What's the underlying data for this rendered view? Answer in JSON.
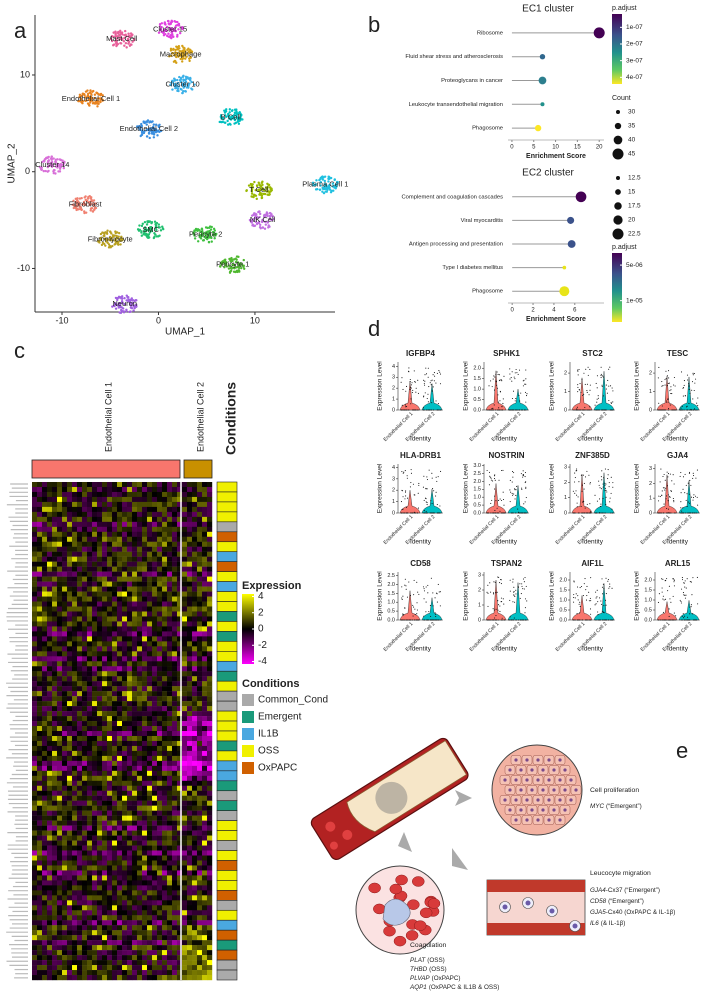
{
  "panel_labels": [
    "a",
    "b",
    "c",
    "d",
    "e"
  ],
  "chart_data": [
    {
      "type": "scatter",
      "xlabel": "UMAP_1",
      "ylabel": "UMAP_2",
      "xlim": [
        -12.8,
        18.3
      ],
      "ylim": [
        -14.5,
        16.2
      ],
      "xticks": [
        -10,
        0,
        10
      ],
      "yticks": [
        -10,
        0,
        10
      ],
      "series": [
        {
          "name": "Mast Cell",
          "color": "#e8609a",
          "x": [
            -3.8
          ],
          "y": [
            13.7
          ]
        },
        {
          "name": "Cluster 15",
          "color": "#e040e0",
          "x": [
            1.2
          ],
          "y": [
            14.7
          ]
        },
        {
          "name": "Macrophage",
          "color": "#d4a017",
          "x": [
            2.3
          ],
          "y": [
            12.1
          ]
        },
        {
          "name": "Cluster 10",
          "color": "#3ab0e8",
          "x": [
            2.5
          ],
          "y": [
            9.0
          ]
        },
        {
          "name": "Endothelial Cell 1",
          "color": "#e8821e",
          "x": [
            -7.0
          ],
          "y": [
            7.5
          ]
        },
        {
          "name": "Endothelial Cell 2",
          "color": "#3a8fe0",
          "x": [
            -1.0
          ],
          "y": [
            4.4
          ]
        },
        {
          "name": "B Cell",
          "color": "#00c0c0",
          "x": [
            7.5
          ],
          "y": [
            5.6
          ]
        },
        {
          "name": "Cluster 14",
          "color": "#d870d8",
          "x": [
            -11.0
          ],
          "y": [
            0.7
          ]
        },
        {
          "name": "Fibroblast",
          "color": "#f08070",
          "x": [
            -7.6
          ],
          "y": [
            -3.4
          ]
        },
        {
          "name": "T Cell",
          "color": "#9ab800",
          "x": [
            10.4
          ],
          "y": [
            -1.9
          ]
        },
        {
          "name": "Plasma Cell 1",
          "color": "#20c0e0",
          "x": [
            17.3
          ],
          "y": [
            -1.3
          ]
        },
        {
          "name": "NK Cell",
          "color": "#c070e0",
          "x": [
            10.8
          ],
          "y": [
            -5.0
          ]
        },
        {
          "name": "Fibromyocyte",
          "color": "#b8a020",
          "x": [
            -5.0
          ],
          "y": [
            -7.0
          ]
        },
        {
          "name": "SMC",
          "color": "#20c070",
          "x": [
            -0.8
          ],
          "y": [
            -6.0
          ]
        },
        {
          "name": "Pericyte 2",
          "color": "#40c040",
          "x": [
            4.9
          ],
          "y": [
            -6.5
          ]
        },
        {
          "name": "Pericyte 1",
          "color": "#50b830",
          "x": [
            7.7
          ],
          "y": [
            -9.6
          ]
        },
        {
          "name": "Neuron",
          "color": "#a060e0",
          "x": [
            -3.5
          ],
          "y": [
            -13.7
          ]
        }
      ]
    },
    {
      "type": "lollipop",
      "title": "EC1 cluster",
      "xlabel": "Enrichment Score",
      "categories": [
        "Ribosome",
        "Fluid shear stress and atherosclerosis",
        "Proteoglycans in cancer",
        "Leukocyte transendothelial migration",
        "Phagosome"
      ],
      "values": [
        20,
        7,
        7,
        7,
        6
      ],
      "counts": [
        45,
        33,
        38,
        30,
        35
      ],
      "colors": [
        "#440154",
        "#31688e",
        "#2c7f8e",
        "#21918c",
        "#fde725"
      ],
      "xlim": [
        -0.9,
        21.1
      ],
      "xticks": [
        0,
        5,
        10,
        15,
        20
      ],
      "size_title": "Count",
      "size_ticks": [
        30,
        35,
        40,
        45
      ],
      "color_title": "p.adjust",
      "clim": [
        2e-08,
        4.4e-07
      ],
      "cticks": [
        {
          "value": 1e-07,
          "label": "1e-07"
        },
        {
          "value": 2e-07,
          "label": "2e-07"
        },
        {
          "value": 3e-07,
          "label": "3e-07"
        },
        {
          "value": 4e-07,
          "label": "4e-07"
        }
      ]
    },
    {
      "type": "lollipop",
      "title": "EC2 cluster",
      "xlabel": "Enrichment Score",
      "categories": [
        "Complement and coagulation cascades",
        "Viral myocarditis",
        "Antigen processing and presentation",
        "Type I diabetes mellitus",
        "Phagosome"
      ],
      "values": [
        6.6,
        5.6,
        5.7,
        5.0,
        5.0
      ],
      "counts": [
        22,
        17,
        18,
        12,
        21
      ],
      "colors": [
        "#440154",
        "#3b528b",
        "#3b528b",
        "#e8e419",
        "#e8e419"
      ],
      "xlim": [
        -0.4,
        8.8
      ],
      "xticks": [
        0,
        2,
        4,
        6
      ],
      "size_ticks": [
        12.5,
        15.0,
        17.5,
        20.0,
        22.5
      ],
      "color_title": "p.adjust",
      "clim": [
        3.3e-06,
        1.3e-05
      ],
      "cticks": [
        {
          "value": 5e-06,
          "label": "5e-06"
        },
        {
          "value": 1e-05,
          "label": "1e-05"
        }
      ]
    }
  ],
  "heatmap": {
    "columns": [
      {
        "name": "Endothelial Cell 1",
        "color": "#f8766d"
      },
      {
        "name": "Endothelial Cell 2",
        "color": "#c89000"
      }
    ],
    "annotation_title": "Conditions",
    "expression_title": "Expression",
    "clim": [
      -4.3,
      4.3
    ],
    "cticks": [
      4,
      2,
      0,
      -2,
      -4
    ],
    "conditions_title": "Conditions",
    "conditions": [
      {
        "name": "Common_Cond",
        "color": "#aaaaaa"
      },
      {
        "name": "Emergent",
        "color": "#1a9a7a"
      },
      {
        "name": "IL1B",
        "color": "#4aa8e0"
      },
      {
        "name": "OSS",
        "color": "#f0f000"
      },
      {
        "name": "OxPAPC",
        "color": "#d06000"
      }
    ]
  },
  "violins": {
    "ylabel": "Expression Level",
    "xlabel": "Identity",
    "groups": [
      "Endothelial Cell 1",
      "Endothelial Cell 2"
    ],
    "colors": [
      "#f8766d",
      "#00bfc4"
    ],
    "genes": [
      {
        "name": "IGFBP4",
        "ylim": [
          0,
          4.4
        ],
        "yticks": [
          0,
          1,
          2,
          3,
          4
        ]
      },
      {
        "name": "SPHK1",
        "ylim": [
          0,
          2.3
        ],
        "yticks": [
          {
            "value": 0,
            "label": "0.0"
          },
          {
            "value": 0.5,
            "label": "0.5"
          },
          {
            "value": 1,
            "label": "1.0"
          },
          {
            "value": 1.5,
            "label": "1.5"
          },
          {
            "value": 2,
            "label": "2.0"
          }
        ]
      },
      {
        "name": "STC2",
        "ylim": [
          0,
          2.6
        ],
        "yticks": [
          0,
          1,
          2
        ]
      },
      {
        "name": "TESC",
        "ylim": [
          0,
          2.6
        ],
        "yticks": [
          0,
          1,
          2
        ]
      },
      {
        "name": "HLA-DRB1",
        "ylim": [
          0,
          4.3
        ],
        "yticks": [
          0,
          1,
          2,
          3,
          4
        ]
      },
      {
        "name": "NOSTRIN",
        "ylim": [
          0,
          3.1
        ],
        "yticks": [
          {
            "value": 0,
            "label": "0.0"
          },
          {
            "value": 0.5,
            "label": "0.5"
          },
          {
            "value": 1,
            "label": "1.0"
          },
          {
            "value": 1.5,
            "label": "1.5"
          },
          {
            "value": 2,
            "label": "2.0"
          },
          {
            "value": 2.5,
            "label": "2.5"
          },
          {
            "value": 3,
            "label": "3.0"
          }
        ]
      },
      {
        "name": "ZNF385D",
        "ylim": [
          0,
          3.2
        ],
        "yticks": [
          0,
          1,
          2,
          3
        ]
      },
      {
        "name": "GJA4",
        "ylim": [
          0,
          3.3
        ],
        "yticks": [
          0,
          1,
          2,
          3
        ]
      },
      {
        "name": "CD58",
        "ylim": [
          0,
          2.7
        ],
        "yticks": [
          {
            "value": 0,
            "label": "0.0"
          },
          {
            "value": 0.5,
            "label": "0.5"
          },
          {
            "value": 1,
            "label": "1.0"
          },
          {
            "value": 1.5,
            "label": "1.5"
          },
          {
            "value": 2,
            "label": "2.0"
          },
          {
            "value": 2.5,
            "label": "2.5"
          }
        ]
      },
      {
        "name": "TSPAN2",
        "ylim": [
          0,
          3.2
        ],
        "yticks": [
          0,
          1,
          2,
          3
        ]
      },
      {
        "name": "AIF1L",
        "ylim": [
          0,
          2.4
        ],
        "yticks": [
          {
            "value": 0,
            "label": "0.0"
          },
          {
            "value": 0.5,
            "label": "0.5"
          },
          {
            "value": 1,
            "label": "1.0"
          },
          {
            "value": 1.5,
            "label": "1.5"
          },
          {
            "value": 2,
            "label": "2.0"
          }
        ]
      },
      {
        "name": "ARL15",
        "ylim": [
          0,
          2.4
        ],
        "yticks": [
          {
            "value": 0,
            "label": "0.0"
          },
          {
            "value": 0.5,
            "label": "0.5"
          },
          {
            "value": 1,
            "label": "1.0"
          },
          {
            "value": 1.5,
            "label": "1.5"
          },
          {
            "value": 2,
            "label": "2.0"
          }
        ]
      }
    ]
  },
  "diagram": {
    "proliferation": {
      "title": "Cell proliferation",
      "genes": [
        {
          "gene": "MYC",
          "note": "(“Emergent”)"
        }
      ]
    },
    "migration": {
      "title": "Leucocyte migration",
      "genes": [
        {
          "gene": "GJA4",
          "note": "-Cx37 (“Emergent”)"
        },
        {
          "gene": "CD58",
          "note": "(“Emergent”)"
        },
        {
          "gene": "GJA5",
          "note": "-Cx40 (OxPAPC & IL-1β)"
        },
        {
          "gene": "IL6",
          "note": "(& IL-1β)"
        }
      ]
    },
    "coagulation": {
      "title": "Coagulation",
      "genes": [
        {
          "gene": "PLAT",
          "note": "(OSS)"
        },
        {
          "gene": "THBD",
          "note": "(OSS)"
        },
        {
          "gene": "PLVAP",
          "note": "(OxPAPC)"
        },
        {
          "gene": "AQP1",
          "note": "(OxPAPC & IL1B & OSS)"
        }
      ]
    }
  }
}
